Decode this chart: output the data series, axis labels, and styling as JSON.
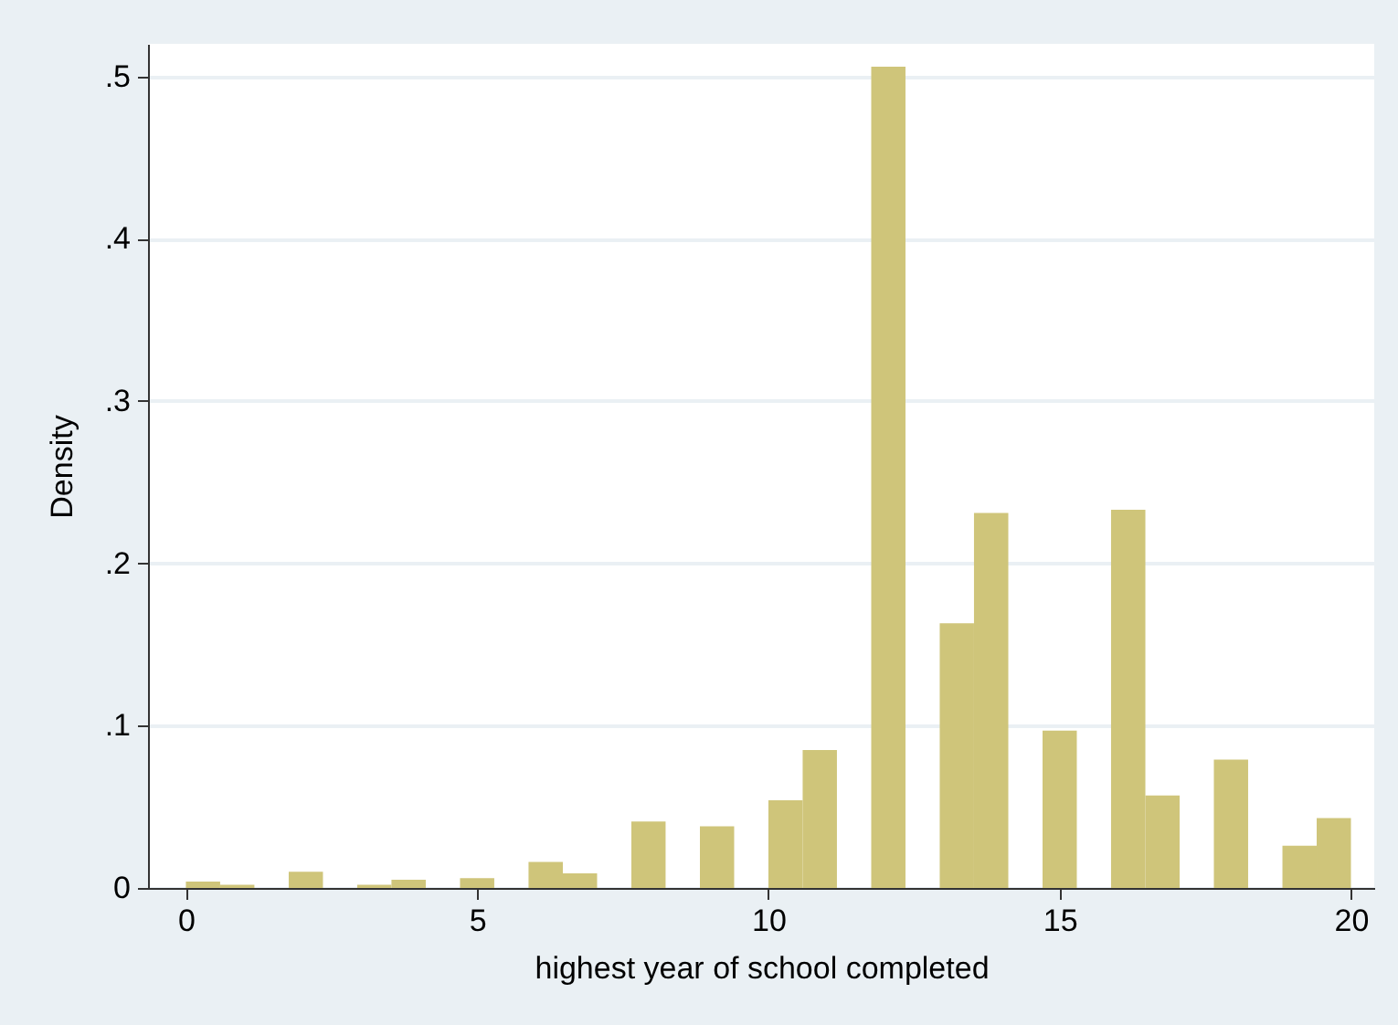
{
  "chart_data": {
    "type": "histogram",
    "xlabel": "highest year of school completed",
    "ylabel": "Density",
    "color": "#cfc57a",
    "bins": [
      0,
      0.588,
      1.176,
      1.765,
      2.353,
      2.941,
      3.529,
      4.118,
      4.706,
      5.294,
      5.882,
      6.471,
      7.059,
      7.647,
      8.235,
      8.824,
      9.412,
      10,
      10.588,
      11.176,
      11.765,
      12.353,
      12.941,
      13.529,
      14.118,
      14.706,
      15.294,
      15.882,
      16.471,
      17.059,
      17.647,
      18.235,
      18.824,
      19.412,
      20
    ],
    "values": [
      0.004,
      0.002,
      0,
      0.01,
      0,
      0.002,
      0.005,
      0,
      0.006,
      0,
      0.016,
      0.009,
      0,
      0.041,
      0,
      0.038,
      0,
      0.054,
      0.085,
      0,
      0.506,
      0,
      0.163,
      0.231,
      0,
      0.097,
      0,
      0.233,
      0.057,
      0,
      0.079,
      0,
      0.026,
      0.043
    ],
    "xlim": [
      -0.65,
      20.4
    ],
    "ylim": [
      0,
      0.52
    ],
    "xticks": [
      0,
      5,
      10,
      15,
      20
    ],
    "yticks": [
      0,
      {
        "value": 0.1,
        "label": ".1"
      },
      {
        "value": 0.2,
        "label": ".2"
      },
      {
        "value": 0.3,
        "label": ".3"
      },
      {
        "value": 0.4,
        "label": ".4"
      },
      {
        "value": 0.5,
        "label": ".5"
      }
    ],
    "grid": "y"
  }
}
